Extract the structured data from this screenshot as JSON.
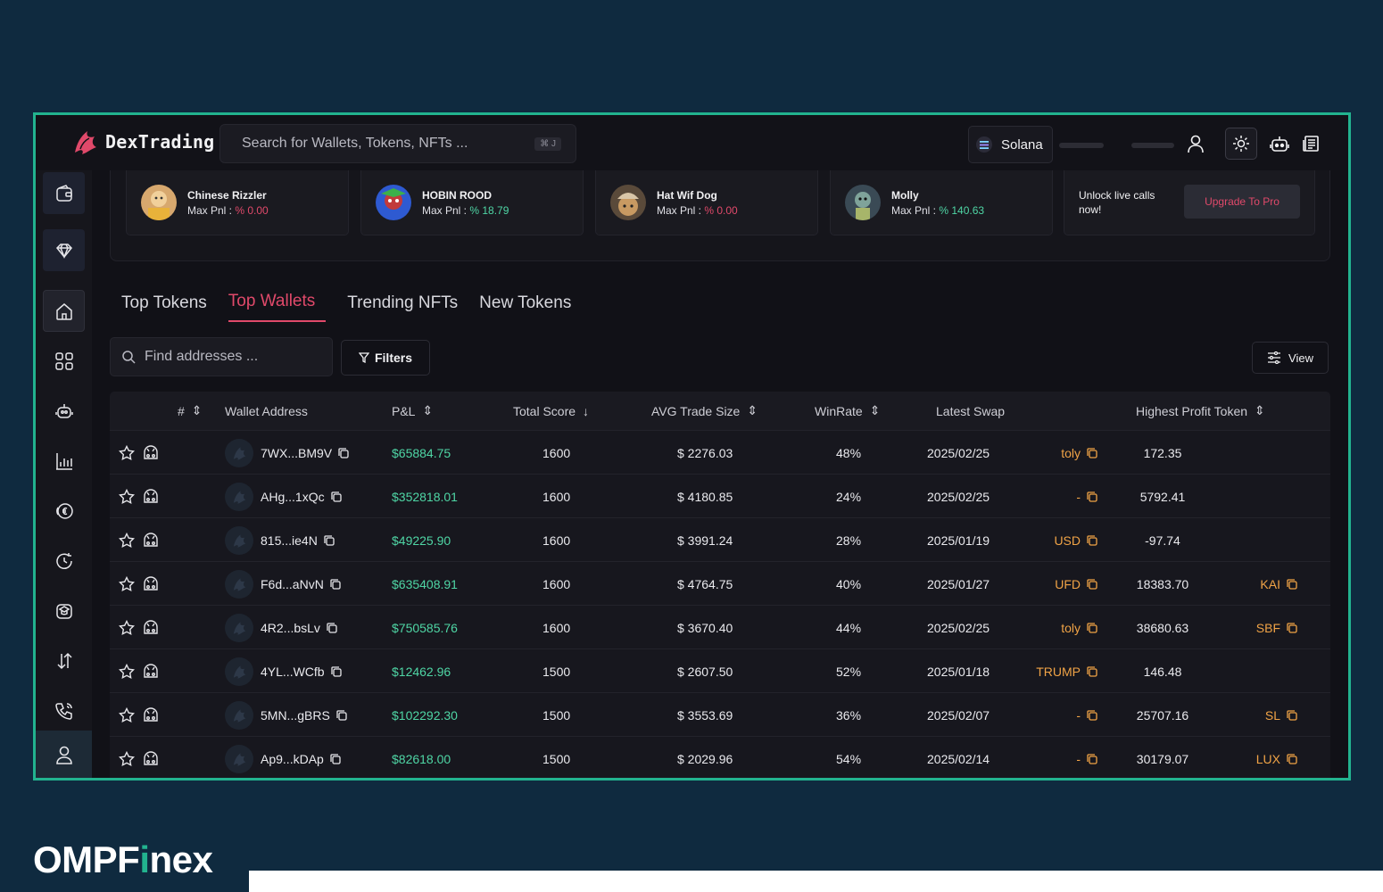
{
  "app": {
    "title": "DexTrading"
  },
  "search": {
    "placeholder": "Search for Wallets, Tokens, NFTs ...",
    "shortcut": "⌘ J"
  },
  "chain": {
    "label": "Solana"
  },
  "cards": [
    {
      "name": "Chinese Rizzler",
      "pnl_label": "Max Pnl :",
      "pnl_value": "% 0.00",
      "trend": "red"
    },
    {
      "name": "HOBIN ROOD",
      "pnl_label": "Max Pnl :",
      "pnl_value": "% 18.79",
      "trend": "green"
    },
    {
      "name": "Hat Wif Dog",
      "pnl_label": "Max Pnl :",
      "pnl_value": "% 0.00",
      "trend": "red"
    },
    {
      "name": "Molly",
      "pnl_label": "Max Pnl :",
      "pnl_value": "% 140.63",
      "trend": "green"
    }
  ],
  "promo": {
    "text": "Unlock live calls now!",
    "button": "Upgrade To Pro"
  },
  "tabs": [
    {
      "label": "Top Tokens",
      "active": false
    },
    {
      "label": "Top Wallets",
      "active": true
    },
    {
      "label": "Trending NFTs",
      "active": false
    },
    {
      "label": "New Tokens",
      "active": false
    }
  ],
  "find": {
    "placeholder": "Find addresses ..."
  },
  "filters_label": "Filters",
  "view_label": "View",
  "table": {
    "headers": {
      "num": "#",
      "wallet": "Wallet Address",
      "pnl": "P&L",
      "score": "Total Score",
      "avg": "AVG Trade Size",
      "winrate": "WinRate",
      "swap": "Latest Swap",
      "highest": "Highest Profit Token"
    },
    "rows": [
      {
        "wallet": "7WX...BM9V",
        "pnl": "$65884.75",
        "score": "1600",
        "avg": "$ 2276.03",
        "winrate": "48%",
        "date": "2025/02/25",
        "swap_token": "toly",
        "profit": "172.35",
        "profit_token": ""
      },
      {
        "wallet": "AHg...1xQc",
        "pnl": "$352818.01",
        "score": "1600",
        "avg": "$ 4180.85",
        "winrate": "24%",
        "date": "2025/02/25",
        "swap_token": "-",
        "profit": "5792.41",
        "profit_token": ""
      },
      {
        "wallet": "815...ie4N",
        "pnl": "$49225.90",
        "score": "1600",
        "avg": "$ 3991.24",
        "winrate": "28%",
        "date": "2025/01/19",
        "swap_token": "USD",
        "profit": "-97.74",
        "profit_token": ""
      },
      {
        "wallet": "F6d...aNvN",
        "pnl": "$635408.91",
        "score": "1600",
        "avg": "$ 4764.75",
        "winrate": "40%",
        "date": "2025/01/27",
        "swap_token": "UFD",
        "profit": "18383.70",
        "profit_token": "KAI"
      },
      {
        "wallet": "4R2...bsLv",
        "pnl": "$750585.76",
        "score": "1600",
        "avg": "$ 3670.40",
        "winrate": "44%",
        "date": "2025/02/25",
        "swap_token": "toly",
        "profit": "38680.63",
        "profit_token": "SBF"
      },
      {
        "wallet": "4YL...WCfb",
        "pnl": "$12462.96",
        "score": "1500",
        "avg": "$ 2607.50",
        "winrate": "52%",
        "date": "2025/01/18",
        "swap_token": "TRUMP",
        "profit": "146.48",
        "profit_token": ""
      },
      {
        "wallet": "5MN...gBRS",
        "pnl": "$102292.30",
        "score": "1500",
        "avg": "$ 3553.69",
        "winrate": "36%",
        "date": "2025/02/07",
        "swap_token": "-",
        "profit": "25707.16",
        "profit_token": "SL"
      },
      {
        "wallet": "Ap9...kDAp",
        "pnl": "$82618.00",
        "score": "1500",
        "avg": "$ 2029.96",
        "winrate": "54%",
        "date": "2025/02/14",
        "swap_token": "-",
        "profit": "30179.07",
        "profit_token": "LUX"
      }
    ]
  },
  "colors": {
    "accent": "#e0496a",
    "positive": "#4fd6a5",
    "token": "#f0a346",
    "frame": "#22b38f",
    "background": "#0f2a3f"
  },
  "watermark": {
    "prefix": "OMPF",
    "highlight": "i",
    "suffix": "nex"
  }
}
